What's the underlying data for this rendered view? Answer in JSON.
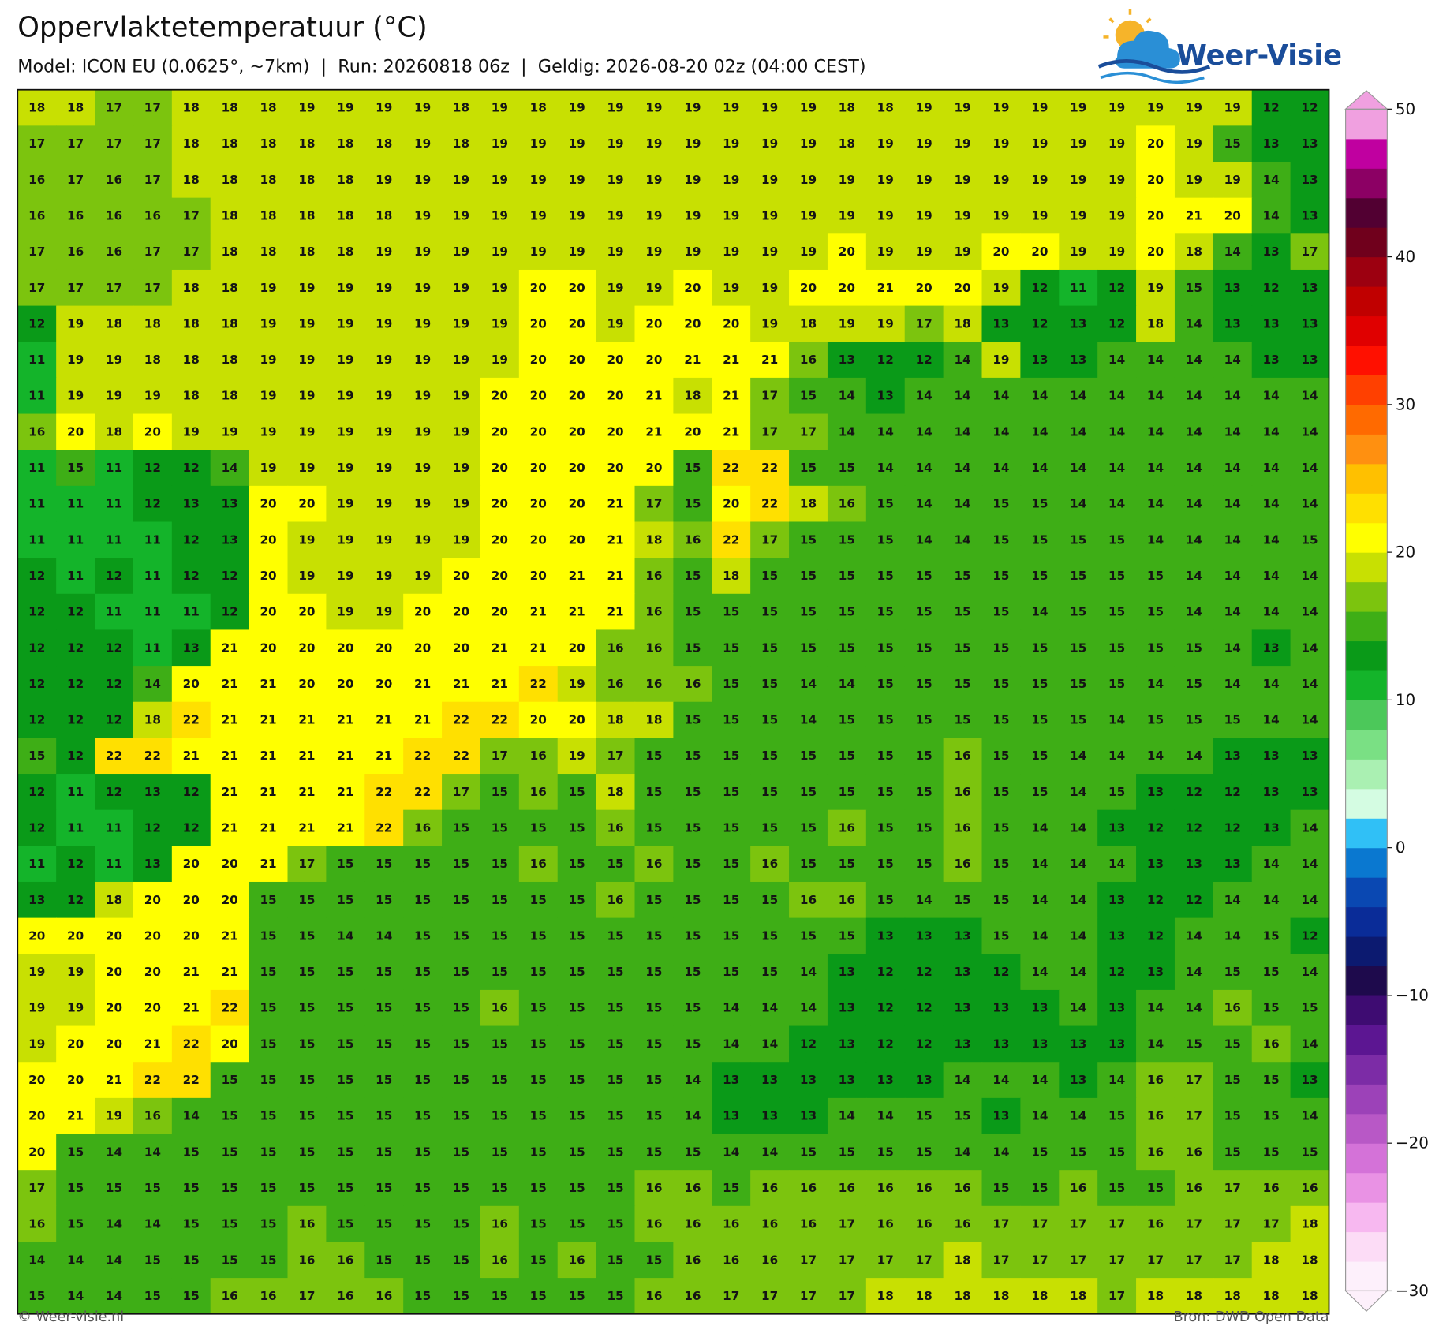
{
  "header": {
    "title": "Oppervlaktetemperatuur (°C)",
    "subtitle": "Model: ICON EU (0.0625°, ~7km)  |  Run: 20260818 06z  |  Geldig: 2026-08-20 02z (04:00 CEST)",
    "logo": "Weer-Visie"
  },
  "grid": {
    "rows": [
      [
        18,
        18,
        17,
        17,
        18,
        18,
        18,
        19,
        19,
        19,
        19,
        18,
        19,
        18,
        19,
        19,
        19,
        19,
        19,
        19,
        19,
        18,
        18,
        19,
        19,
        19,
        19,
        19,
        19,
        19,
        19,
        19,
        12,
        12
      ],
      [
        17,
        17,
        17,
        17,
        18,
        18,
        18,
        18,
        18,
        18,
        19,
        18,
        19,
        19,
        19,
        19,
        19,
        19,
        19,
        19,
        19,
        18,
        19,
        19,
        19,
        19,
        19,
        19,
        19,
        20,
        19,
        15,
        13,
        13
      ],
      [
        16,
        17,
        16,
        17,
        18,
        18,
        18,
        18,
        18,
        19,
        19,
        19,
        19,
        19,
        19,
        19,
        19,
        19,
        19,
        19,
        19,
        19,
        19,
        19,
        19,
        19,
        19,
        19,
        19,
        20,
        19,
        19,
        14,
        13
      ],
      [
        16,
        16,
        16,
        16,
        17,
        18,
        18,
        18,
        18,
        18,
        19,
        19,
        19,
        19,
        19,
        19,
        19,
        19,
        19,
        19,
        19,
        19,
        19,
        19,
        19,
        19,
        19,
        19,
        19,
        20,
        21,
        20,
        14,
        13
      ],
      [
        17,
        16,
        16,
        17,
        17,
        18,
        18,
        18,
        18,
        19,
        19,
        19,
        19,
        19,
        19,
        19,
        19,
        19,
        19,
        19,
        19,
        20,
        19,
        19,
        19,
        20,
        20,
        19,
        19,
        20,
        18,
        14,
        13,
        17
      ],
      [
        17,
        17,
        17,
        17,
        18,
        18,
        19,
        19,
        19,
        19,
        19,
        19,
        19,
        20,
        20,
        19,
        19,
        20,
        19,
        19,
        20,
        20,
        21,
        20,
        20,
        19,
        12,
        11,
        12,
        19,
        15,
        13,
        12,
        13
      ],
      [
        12,
        19,
        18,
        18,
        18,
        18,
        19,
        19,
        19,
        19,
        19,
        19,
        19,
        20,
        20,
        19,
        20,
        20,
        20,
        19,
        18,
        19,
        19,
        17,
        18,
        13,
        12,
        13,
        12,
        18,
        14,
        13,
        13,
        13
      ],
      [
        11,
        19,
        19,
        18,
        18,
        18,
        19,
        19,
        19,
        19,
        19,
        19,
        19,
        20,
        20,
        20,
        20,
        21,
        21,
        21,
        16,
        13,
        12,
        12,
        14,
        19,
        13,
        13,
        14,
        14,
        14,
        14,
        13,
        13
      ],
      [
        11,
        19,
        19,
        19,
        18,
        18,
        19,
        19,
        19,
        19,
        19,
        19,
        20,
        20,
        20,
        20,
        21,
        18,
        21,
        17,
        15,
        14,
        13,
        14,
        14,
        14,
        14,
        14,
        14,
        14,
        14,
        14,
        14,
        14
      ],
      [
        16,
        20,
        18,
        20,
        19,
        19,
        19,
        19,
        19,
        19,
        19,
        19,
        20,
        20,
        20,
        20,
        21,
        20,
        21,
        17,
        17,
        14,
        14,
        14,
        14,
        14,
        14,
        14,
        14,
        14,
        14,
        14,
        14,
        14
      ],
      [
        11,
        15,
        11,
        12,
        12,
        14,
        19,
        19,
        19,
        19,
        19,
        19,
        20,
        20,
        20,
        20,
        20,
        15,
        22,
        22,
        15,
        15,
        14,
        14,
        14,
        14,
        14,
        14,
        14,
        14,
        14,
        14,
        14,
        14
      ],
      [
        11,
        11,
        11,
        12,
        13,
        13,
        20,
        20,
        19,
        19,
        19,
        19,
        20,
        20,
        20,
        21,
        17,
        15,
        20,
        22,
        18,
        16,
        15,
        14,
        14,
        15,
        15,
        14,
        14,
        14,
        14,
        14,
        14,
        14
      ],
      [
        11,
        11,
        11,
        11,
        12,
        13,
        20,
        19,
        19,
        19,
        19,
        19,
        20,
        20,
        20,
        21,
        18,
        16,
        22,
        17,
        15,
        15,
        15,
        14,
        14,
        15,
        15,
        15,
        15,
        14,
        14,
        14,
        14,
        15
      ],
      [
        12,
        11,
        12,
        11,
        12,
        12,
        20,
        19,
        19,
        19,
        19,
        20,
        20,
        20,
        21,
        21,
        16,
        15,
        18,
        15,
        15,
        15,
        15,
        15,
        15,
        15,
        15,
        15,
        15,
        15,
        14,
        14,
        14,
        14
      ],
      [
        12,
        12,
        11,
        11,
        11,
        12,
        20,
        20,
        19,
        19,
        20,
        20,
        20,
        21,
        21,
        21,
        16,
        15,
        15,
        15,
        15,
        15,
        15,
        15,
        15,
        15,
        14,
        15,
        15,
        15,
        14,
        14,
        14,
        14
      ],
      [
        12,
        12,
        12,
        11,
        13,
        21,
        20,
        20,
        20,
        20,
        20,
        20,
        21,
        21,
        20,
        16,
        16,
        15,
        15,
        15,
        15,
        15,
        15,
        15,
        15,
        15,
        15,
        15,
        15,
        15,
        15,
        14,
        13,
        14
      ],
      [
        12,
        12,
        12,
        14,
        20,
        21,
        21,
        20,
        20,
        20,
        21,
        21,
        21,
        22,
        19,
        16,
        16,
        16,
        15,
        15,
        14,
        14,
        15,
        15,
        15,
        15,
        15,
        15,
        15,
        14,
        15,
        14,
        14,
        14
      ],
      [
        12,
        12,
        12,
        18,
        22,
        21,
        21,
        21,
        21,
        21,
        21,
        22,
        22,
        20,
        20,
        18,
        18,
        15,
        15,
        15,
        14,
        15,
        15,
        15,
        15,
        15,
        15,
        15,
        14,
        15,
        15,
        15,
        14,
        14
      ],
      [
        15,
        12,
        22,
        22,
        21,
        21,
        21,
        21,
        21,
        21,
        22,
        22,
        17,
        16,
        19,
        17,
        15,
        15,
        15,
        15,
        15,
        15,
        15,
        15,
        16,
        15,
        15,
        14,
        14,
        14,
        14,
        13,
        13,
        13
      ],
      [
        12,
        11,
        12,
        13,
        12,
        21,
        21,
        21,
        21,
        22,
        22,
        17,
        15,
        16,
        15,
        18,
        15,
        15,
        15,
        15,
        15,
        15,
        15,
        15,
        16,
        15,
        15,
        14,
        15,
        13,
        12,
        12,
        13,
        13
      ],
      [
        12,
        11,
        11,
        12,
        12,
        21,
        21,
        21,
        21,
        22,
        16,
        15,
        15,
        15,
        15,
        16,
        15,
        15,
        15,
        15,
        15,
        16,
        15,
        15,
        16,
        15,
        14,
        14,
        13,
        12,
        12,
        12,
        13,
        14
      ],
      [
        11,
        12,
        11,
        13,
        20,
        20,
        21,
        17,
        15,
        15,
        15,
        15,
        15,
        16,
        15,
        15,
        16,
        15,
        15,
        16,
        15,
        15,
        15,
        15,
        16,
        15,
        14,
        14,
        14,
        13,
        13,
        13,
        14,
        14
      ],
      [
        13,
        12,
        18,
        20,
        20,
        20,
        15,
        15,
        15,
        15,
        15,
        15,
        15,
        15,
        15,
        16,
        15,
        15,
        15,
        15,
        16,
        16,
        15,
        14,
        15,
        15,
        14,
        14,
        13,
        12,
        12,
        14,
        14,
        14
      ],
      [
        20,
        20,
        20,
        20,
        20,
        21,
        15,
        15,
        14,
        14,
        15,
        15,
        15,
        15,
        15,
        15,
        15,
        15,
        15,
        15,
        15,
        15,
        13,
        13,
        13,
        15,
        14,
        14,
        13,
        12,
        14,
        14,
        15,
        12
      ],
      [
        19,
        19,
        20,
        20,
        21,
        21,
        15,
        15,
        15,
        15,
        15,
        15,
        15,
        15,
        15,
        15,
        15,
        15,
        15,
        15,
        14,
        13,
        12,
        12,
        13,
        12,
        14,
        14,
        12,
        13,
        14,
        15,
        15,
        14
      ],
      [
        19,
        19,
        20,
        20,
        21,
        22,
        15,
        15,
        15,
        15,
        15,
        15,
        16,
        15,
        15,
        15,
        15,
        15,
        14,
        14,
        14,
        13,
        12,
        12,
        13,
        13,
        13,
        14,
        13,
        14,
        14,
        16,
        15,
        15
      ],
      [
        19,
        20,
        20,
        21,
        22,
        20,
        15,
        15,
        15,
        15,
        15,
        15,
        15,
        15,
        15,
        15,
        15,
        15,
        14,
        14,
        12,
        13,
        12,
        12,
        13,
        13,
        13,
        13,
        13,
        14,
        15,
        15,
        16,
        14
      ],
      [
        20,
        20,
        21,
        22,
        22,
        15,
        15,
        15,
        15,
        15,
        15,
        15,
        15,
        15,
        15,
        15,
        15,
        14,
        13,
        13,
        13,
        13,
        13,
        13,
        14,
        14,
        14,
        13,
        14,
        16,
        17,
        15,
        15,
        13
      ],
      [
        20,
        21,
        19,
        16,
        14,
        15,
        15,
        15,
        15,
        15,
        15,
        15,
        15,
        15,
        15,
        15,
        15,
        14,
        13,
        13,
        13,
        14,
        14,
        15,
        15,
        13,
        14,
        14,
        15,
        16,
        17,
        15,
        15,
        14
      ],
      [
        20,
        15,
        14,
        14,
        15,
        15,
        15,
        15,
        15,
        15,
        15,
        15,
        15,
        15,
        15,
        15,
        15,
        15,
        14,
        14,
        15,
        15,
        15,
        15,
        14,
        14,
        15,
        15,
        15,
        16,
        16,
        15,
        15,
        15
      ],
      [
        17,
        15,
        15,
        15,
        15,
        15,
        15,
        15,
        15,
        15,
        15,
        15,
        15,
        15,
        15,
        15,
        16,
        16,
        15,
        16,
        16,
        16,
        16,
        16,
        16,
        15,
        15,
        16,
        15,
        15,
        16,
        17,
        16,
        16
      ],
      [
        16,
        15,
        14,
        14,
        15,
        15,
        15,
        16,
        15,
        15,
        15,
        15,
        16,
        15,
        15,
        15,
        16,
        16,
        16,
        16,
        16,
        17,
        16,
        16,
        16,
        17,
        17,
        17,
        17,
        16,
        17,
        17,
        17,
        18
      ],
      [
        14,
        14,
        14,
        15,
        15,
        15,
        15,
        16,
        16,
        15,
        15,
        15,
        16,
        15,
        16,
        15,
        15,
        16,
        16,
        16,
        17,
        17,
        17,
        17,
        18,
        17,
        17,
        17,
        17,
        17,
        17,
        17,
        18,
        18
      ],
      [
        15,
        14,
        14,
        15,
        15,
        16,
        16,
        17,
        16,
        16,
        15,
        15,
        15,
        15,
        15,
        15,
        16,
        16,
        17,
        17,
        17,
        17,
        18,
        18,
        18,
        18,
        18,
        18,
        17,
        18,
        18,
        18,
        18,
        18
      ]
    ]
  },
  "colorbar": {
    "lim": [
      -30,
      50
    ],
    "ticks": [
      50,
      40,
      30,
      20,
      10,
      0,
      {
        "value": -10,
        "label": "−10"
      },
      {
        "value": -20,
        "label": "−20"
      },
      {
        "value": -30,
        "label": "−30"
      }
    ],
    "colors": [
      "#fdf0fb",
      "#fcdcf6",
      "#f7b8f0",
      "#e992e4",
      "#d472d8",
      "#b858c6",
      "#9c42b8",
      "#7c2ca6",
      "#5c1692",
      "#3e0c72",
      "#1e0a4c",
      "#0c1a70",
      "#0a2c98",
      "#0a48b2",
      "#0a78d0",
      "#30c0f6",
      "#d4fce2",
      "#aaf0b2",
      "#7ae084",
      "#4cc85a",
      "#14b42a",
      "#0a9a18",
      "#3eae16",
      "#7cc40e",
      "#c8e002",
      "#ffff00",
      "#ffe000",
      "#ffc000",
      "#ff9010",
      "#ff6a00",
      "#ff4000",
      "#ff1000",
      "#e00000",
      "#c00000",
      "#9c0010",
      "#70001c",
      "#520032",
      "#8c0064",
      "#c000a0",
      "#f0a0e0"
    ]
  },
  "footer": {
    "credit": "© Weer-visie.nl",
    "source": "Bron: DWD Open Data"
  }
}
